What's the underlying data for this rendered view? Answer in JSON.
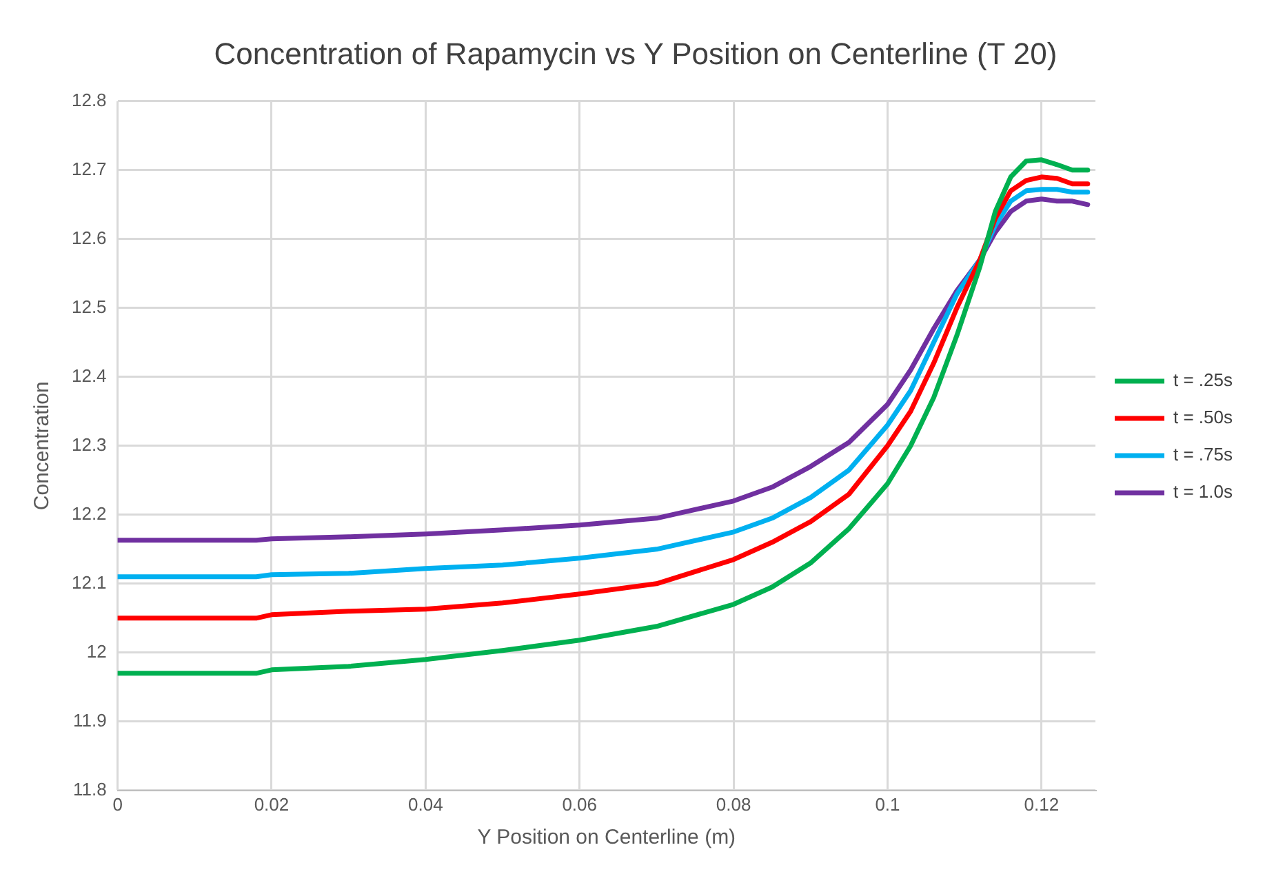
{
  "chart_data": {
    "type": "line",
    "title": "Concentration of Rapamycin vs Y Position on Centerline (T 20)",
    "xlabel": "Y Position on Centerline (m)",
    "ylabel": "Concentration",
    "x": [
      0,
      0.018,
      0.02,
      0.03,
      0.04,
      0.05,
      0.06,
      0.07,
      0.08,
      0.085,
      0.09,
      0.095,
      0.1,
      0.103,
      0.106,
      0.109,
      0.112,
      0.114,
      0.116,
      0.118,
      0.12,
      0.122,
      0.124,
      0.126
    ],
    "series": [
      {
        "name": "t = .25s",
        "color": "#00b050",
        "values": [
          11.97,
          11.97,
          11.975,
          11.98,
          11.99,
          12.003,
          12.018,
          12.038,
          12.07,
          12.095,
          12.13,
          12.18,
          12.245,
          12.3,
          12.37,
          12.46,
          12.56,
          12.64,
          12.69,
          12.713,
          12.715,
          12.708,
          12.7,
          12.7
        ]
      },
      {
        "name": "t = .50s",
        "color": "#ff0000",
        "values": [
          12.05,
          12.05,
          12.055,
          12.06,
          12.063,
          12.072,
          12.085,
          12.1,
          12.135,
          12.16,
          12.19,
          12.23,
          12.3,
          12.35,
          12.42,
          12.5,
          12.57,
          12.63,
          12.67,
          12.685,
          12.69,
          12.688,
          12.68,
          12.68
        ]
      },
      {
        "name": "t = .75s",
        "color": "#00b0f0",
        "values": [
          12.11,
          12.11,
          12.113,
          12.115,
          12.122,
          12.127,
          12.137,
          12.15,
          12.175,
          12.195,
          12.225,
          12.265,
          12.33,
          12.38,
          12.45,
          12.52,
          12.57,
          12.62,
          12.655,
          12.67,
          12.672,
          12.672,
          12.668,
          12.668
        ]
      },
      {
        "name": "t = 1.0s",
        "color": "#7030a0",
        "values": [
          12.163,
          12.163,
          12.165,
          12.168,
          12.172,
          12.178,
          12.185,
          12.195,
          12.22,
          12.24,
          12.27,
          12.305,
          12.36,
          12.41,
          12.47,
          12.525,
          12.57,
          12.61,
          12.64,
          12.655,
          12.658,
          12.655,
          12.655,
          12.65
        ]
      }
    ],
    "xlim": [
      0,
      0.127
    ],
    "xticks": [
      0,
      0.02,
      0.04,
      0.06,
      0.08,
      0.1,
      0.12
    ],
    "ylim": [
      11.8,
      12.8
    ],
    "yticks": [
      11.8,
      11.9,
      12,
      12.1,
      12.2,
      12.3,
      12.4,
      12.5,
      12.6,
      12.7,
      12.8
    ],
    "grid": true,
    "legend": "right",
    "marker": "none",
    "line_style": "solid"
  }
}
